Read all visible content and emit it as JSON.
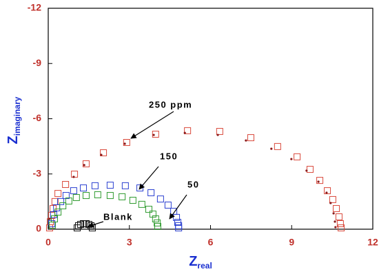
{
  "chart_data": {
    "type": "scatter",
    "x_label": "Z",
    "x_label_sub": "real",
    "y_label": "Z",
    "y_label_sub": "imaginary",
    "xlim": [
      0,
      12
    ],
    "xticks": [
      0,
      3,
      6,
      9,
      12
    ],
    "ylim": [
      0,
      -12
    ],
    "yticks": [
      -12,
      -9,
      -6,
      -3,
      0
    ],
    "annotations": [
      "250 ppm",
      "150",
      "50",
      "Blank"
    ],
    "series": [
      {
        "color": "#d9483a",
        "marker": "square",
        "x": [
          0.05,
          0.08,
          0.13,
          0.18,
          0.25,
          0.36,
          0.64,
          0.97,
          1.4,
          2.04,
          2.9,
          3.97,
          5.15,
          6.34,
          7.49,
          8.48,
          9.2,
          9.68,
          10.04,
          10.32,
          10.52,
          10.65,
          10.75,
          10.8,
          10.83
        ],
        "values": [
          -0.07,
          -0.41,
          -0.75,
          -1.12,
          -1.5,
          -1.94,
          -2.43,
          -2.99,
          -3.55,
          -4.15,
          -4.71,
          -5.16,
          -5.35,
          -5.31,
          -4.97,
          -4.49,
          -3.93,
          -3.25,
          -2.65,
          -2.09,
          -1.61,
          -1.12,
          -0.67,
          -0.3,
          -0.07
        ]
      },
      {
        "color": "#8b1a1a",
        "marker": "dot",
        "x": [
          0.02,
          0.05,
          0.94,
          1.33,
          1.96,
          2.83,
          3.9,
          5.05,
          6.27,
          7.31,
          8.25,
          8.99,
          9.55,
          9.99,
          10.29,
          10.44,
          10.55,
          10.6,
          10.62
        ],
        "values": [
          -0.11,
          -0.56,
          -2.84,
          -3.48,
          -4.04,
          -4.64,
          -5.12,
          -5.23,
          -5.12,
          -4.82,
          -4.37,
          -3.81,
          -3.18,
          -2.58,
          -1.98,
          -1.42,
          -0.86,
          -0.41,
          -0.11
        ]
      },
      {
        "color": "#2a3fd0",
        "marker": "square",
        "x": [
          0.13,
          0.2,
          0.31,
          0.46,
          0.66,
          0.94,
          1.3,
          1.73,
          2.29,
          2.85,
          3.39,
          3.8,
          4.15,
          4.43,
          4.64,
          4.74,
          4.79,
          4.82,
          4.82
        ],
        "values": [
          -0.3,
          -0.79,
          -1.16,
          -1.5,
          -1.83,
          -2.09,
          -2.24,
          -2.36,
          -2.39,
          -2.36,
          -2.24,
          -1.98,
          -1.64,
          -1.31,
          -0.97,
          -0.64,
          -0.37,
          -0.19,
          -0.07
        ]
      },
      {
        "color": "#2e9a2e",
        "marker": "square",
        "x": [
          0.15,
          0.23,
          0.36,
          0.54,
          0.76,
          1.04,
          1.4,
          1.83,
          2.29,
          2.73,
          3.13,
          3.46,
          3.72,
          3.87,
          3.97,
          4.03,
          4.05
        ],
        "values": [
          -0.22,
          -0.56,
          -0.93,
          -1.27,
          -1.53,
          -1.72,
          -1.83,
          -1.87,
          -1.83,
          -1.76,
          -1.57,
          -1.35,
          -1.08,
          -0.82,
          -0.56,
          -0.34,
          -0.15
        ]
      },
      {
        "color": "#111111",
        "marker": "square",
        "x": [
          1.07,
          1.12,
          1.2,
          1.3,
          1.4,
          1.5,
          1.58,
          1.63
        ],
        "values": [
          -0.07,
          -0.19,
          -0.26,
          -0.3,
          -0.3,
          -0.26,
          -0.19,
          -0.07
        ]
      }
    ]
  }
}
